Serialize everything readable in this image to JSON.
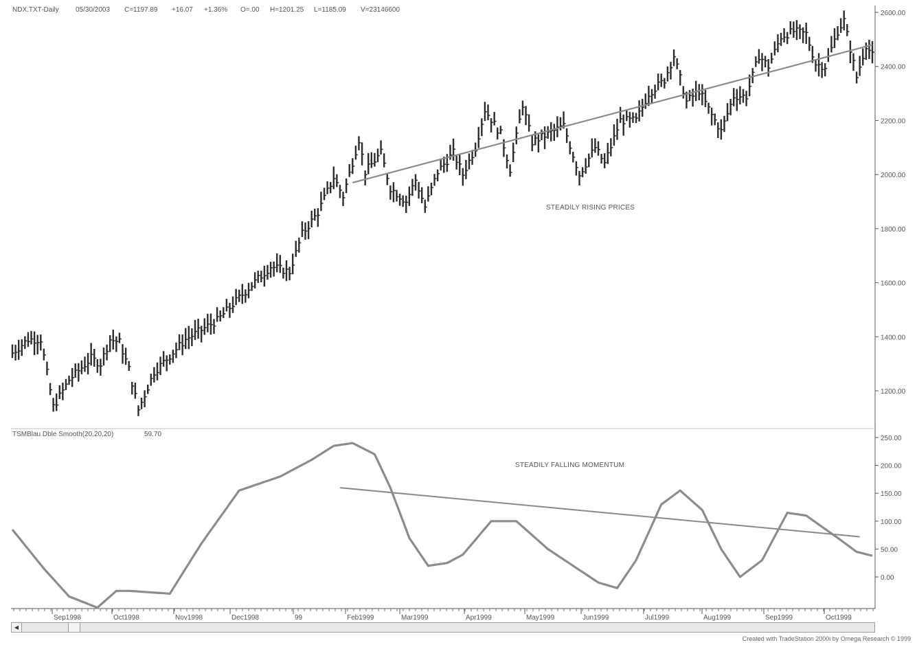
{
  "header": {
    "symbol": "NDX.TXT-Daily",
    "date": "05/30/2003",
    "close": "C=1197.89",
    "change": "+16.07",
    "change_pct": "+1.36%",
    "open": "O=.00",
    "high": "H=1201.25",
    "low": "L=1185.09",
    "volume": "V=23146600"
  },
  "indicator_header": {
    "name": "TSMBlau Dble Smooth(20,20,20)",
    "value": "59.70"
  },
  "annotations": {
    "price": "STEADILY RISING PRICES",
    "momentum": "STEADILY FALLING MOMENTUM"
  },
  "credit": "Created with TradeStation 2000i by Omega Research © 1999",
  "colors": {
    "bars": "#2b2b2b",
    "trendline": "#8a8a8a",
    "momentum_line": "#8c8c8c",
    "grid": "#c8c8c8"
  },
  "chart_data": [
    {
      "type": "bar",
      "subtype": "ohlc-price-bars",
      "title": "NDX.TXT-Daily",
      "ylim": [
        1050,
        2620
      ],
      "y_ticks": [
        "2600.00",
        "2400.00",
        "2200.00",
        "2000.00",
        "1800.00",
        "1600.00",
        "1400.00",
        "1200.00"
      ],
      "x_tick_labels": [
        "Sep1998",
        "Oct1998",
        "Nov1998",
        "Dec1998",
        "99",
        "Feb1999",
        "Mar1999",
        "Apr1999",
        "May1999",
        "Jun1999",
        "Jul1999",
        "Aug1999",
        "Sep1999",
        "Oct1999"
      ],
      "anchors": [
        {
          "i": 0,
          "p": 1340
        },
        {
          "i": 5,
          "p": 1390
        },
        {
          "i": 9,
          "p": 1390
        },
        {
          "i": 13,
          "p": 1140
        },
        {
          "i": 18,
          "p": 1240
        },
        {
          "i": 25,
          "p": 1320
        },
        {
          "i": 28,
          "p": 1300
        },
        {
          "i": 31,
          "p": 1390
        },
        {
          "i": 34,
          "p": 1380
        },
        {
          "i": 37,
          "p": 1280
        },
        {
          "i": 40,
          "p": 1130
        },
        {
          "i": 45,
          "p": 1270
        },
        {
          "i": 55,
          "p": 1390
        },
        {
          "i": 65,
          "p": 1460
        },
        {
          "i": 75,
          "p": 1580
        },
        {
          "i": 82,
          "p": 1660
        },
        {
          "i": 88,
          "p": 1640
        },
        {
          "i": 92,
          "p": 1780
        },
        {
          "i": 97,
          "p": 1860
        },
        {
          "i": 102,
          "p": 1990
        },
        {
          "i": 105,
          "p": 1920
        },
        {
          "i": 110,
          "p": 2130
        },
        {
          "i": 112,
          "p": 2010
        },
        {
          "i": 117,
          "p": 2080
        },
        {
          "i": 120,
          "p": 1950
        },
        {
          "i": 125,
          "p": 1900
        },
        {
          "i": 128,
          "p": 1980
        },
        {
          "i": 131,
          "p": 1880
        },
        {
          "i": 135,
          "p": 2010
        },
        {
          "i": 140,
          "p": 2080
        },
        {
          "i": 143,
          "p": 2000
        },
        {
          "i": 147,
          "p": 2100
        },
        {
          "i": 150,
          "p": 2240
        },
        {
          "i": 155,
          "p": 2150
        },
        {
          "i": 158,
          "p": 2020
        },
        {
          "i": 162,
          "p": 2260
        },
        {
          "i": 165,
          "p": 2120
        },
        {
          "i": 170,
          "p": 2150
        },
        {
          "i": 175,
          "p": 2180
        },
        {
          "i": 180,
          "p": 2000
        },
        {
          "i": 185,
          "p": 2100
        },
        {
          "i": 188,
          "p": 2040
        },
        {
          "i": 193,
          "p": 2200
        },
        {
          "i": 198,
          "p": 2200
        },
        {
          "i": 202,
          "p": 2300
        },
        {
          "i": 207,
          "p": 2350
        },
        {
          "i": 210,
          "p": 2440
        },
        {
          "i": 214,
          "p": 2270
        },
        {
          "i": 218,
          "p": 2310
        },
        {
          "i": 222,
          "p": 2220
        },
        {
          "i": 225,
          "p": 2160
        },
        {
          "i": 229,
          "p": 2290
        },
        {
          "i": 233,
          "p": 2290
        },
        {
          "i": 237,
          "p": 2440
        },
        {
          "i": 240,
          "p": 2400
        },
        {
          "i": 244,
          "p": 2510
        },
        {
          "i": 248,
          "p": 2530
        },
        {
          "i": 252,
          "p": 2520
        },
        {
          "i": 255,
          "p": 2410
        },
        {
          "i": 258,
          "p": 2400
        },
        {
          "i": 262,
          "p": 2530
        },
        {
          "i": 264,
          "p": 2570
        },
        {
          "i": 268,
          "p": 2360
        },
        {
          "i": 271,
          "p": 2480
        },
        {
          "i": 273,
          "p": 2440
        }
      ],
      "bar_count": 274,
      "trendline": {
        "x": [
          108,
          273
        ],
        "y": [
          1970,
          2480
        ]
      }
    },
    {
      "type": "line",
      "title": "TSMBlau Dble Smooth(20,20,20)",
      "ylim": [
        -60,
        265
      ],
      "y_ticks": [
        "250.00",
        "200.00",
        "150.00",
        "100.00",
        "50.00",
        "0.00"
      ],
      "anchors": [
        {
          "i": 0,
          "v": 85
        },
        {
          "i": 10,
          "v": 15
        },
        {
          "i": 18,
          "v": -35
        },
        {
          "i": 27,
          "v": -55
        },
        {
          "i": 33,
          "v": -25
        },
        {
          "i": 37,
          "v": -25
        },
        {
          "i": 50,
          "v": -30
        },
        {
          "i": 60,
          "v": 60
        },
        {
          "i": 72,
          "v": 155
        },
        {
          "i": 85,
          "v": 180
        },
        {
          "i": 95,
          "v": 210
        },
        {
          "i": 102,
          "v": 235
        },
        {
          "i": 108,
          "v": 240
        },
        {
          "i": 115,
          "v": 220
        },
        {
          "i": 120,
          "v": 160
        },
        {
          "i": 126,
          "v": 70
        },
        {
          "i": 132,
          "v": 20
        },
        {
          "i": 138,
          "v": 25
        },
        {
          "i": 143,
          "v": 40
        },
        {
          "i": 152,
          "v": 100
        },
        {
          "i": 160,
          "v": 100
        },
        {
          "i": 170,
          "v": 50
        },
        {
          "i": 178,
          "v": 20
        },
        {
          "i": 186,
          "v": -10
        },
        {
          "i": 192,
          "v": -20
        },
        {
          "i": 198,
          "v": 30
        },
        {
          "i": 206,
          "v": 130
        },
        {
          "i": 212,
          "v": 155
        },
        {
          "i": 219,
          "v": 120
        },
        {
          "i": 225,
          "v": 50
        },
        {
          "i": 231,
          "v": 0
        },
        {
          "i": 238,
          "v": 30
        },
        {
          "i": 246,
          "v": 115
        },
        {
          "i": 252,
          "v": 110
        },
        {
          "i": 262,
          "v": 70
        },
        {
          "i": 268,
          "v": 45
        },
        {
          "i": 273,
          "v": 38
        }
      ],
      "trendline": {
        "x": [
          104,
          269
        ],
        "y": [
          160,
          72
        ]
      }
    }
  ]
}
